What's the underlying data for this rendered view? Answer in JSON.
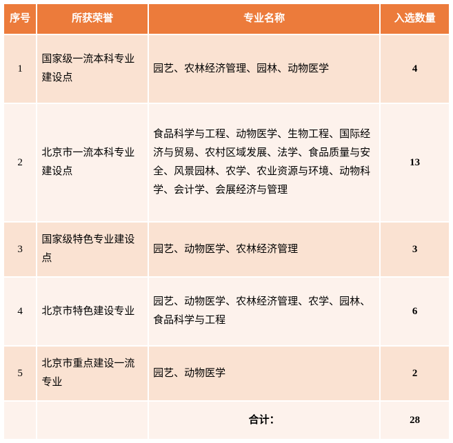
{
  "colors": {
    "header_bg": "#ec7b3b",
    "header_text": "#ffffff",
    "row_odd_bg": "#fae2d2",
    "row_even_bg": "#fdf2ec",
    "border": "#ffffff",
    "text": "#000000"
  },
  "columns": {
    "idx": "序号",
    "honor": "所获荣誉",
    "major": "专业名称",
    "count": "入选数量"
  },
  "rows": [
    {
      "idx": "1",
      "honor": "国家级一流本科专业建设点",
      "major": "园艺、农林经济管理、园林、动物医学",
      "count": "4"
    },
    {
      "idx": "2",
      "honor": "北京市一流本科专业建设点",
      "major": "食品科学与工程、动物医学、生物工程、国际经济与贸易、农村区域发展、法学、食品质量与安全、风景园林、农学、农业资源与环境、动物科学、会计学、会展经济与管理",
      "count": "13"
    },
    {
      "idx": "3",
      "honor": "国家级特色专业建设点",
      "major": "园艺、动物医学、农林经济管理",
      "count": "3"
    },
    {
      "idx": "4",
      "honor": "北京市特色建设专业",
      "major": "园艺、动物医学、农林经济管理、农学、园林、食品科学与工程",
      "count": "6"
    },
    {
      "idx": "5",
      "honor": "北京市重点建设一流专业",
      "major": "园艺、动物医学",
      "count": "2"
    }
  ],
  "footer": {
    "label": "合计：",
    "total": "28"
  },
  "row_heights": [
    "100px",
    "172px",
    "80px",
    "100px",
    "80px",
    "56px"
  ]
}
